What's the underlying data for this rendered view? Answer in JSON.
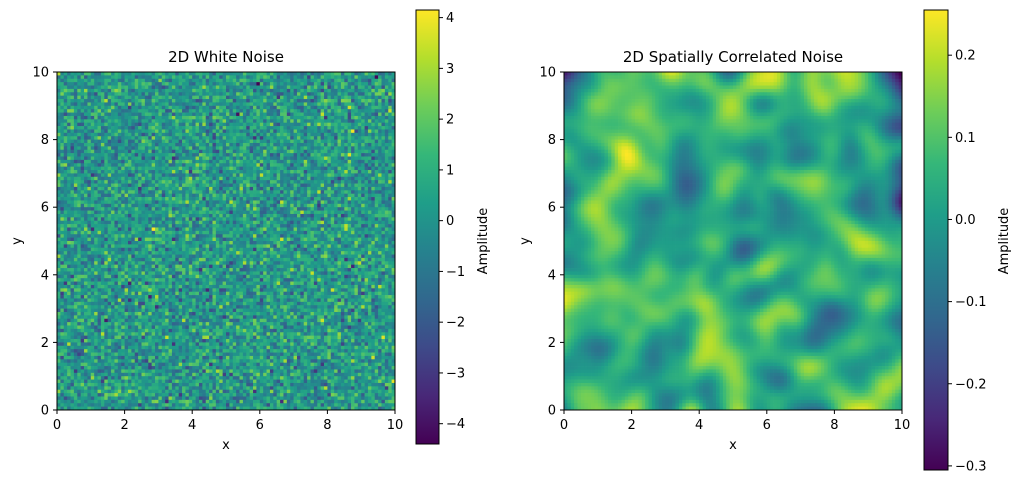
{
  "chart_data": [
    {
      "type": "heatmap",
      "title": "2D White Noise",
      "xlabel": "x",
      "ylabel": "y",
      "xlim": [
        0,
        10
      ],
      "ylim": [
        0,
        10
      ],
      "xticks": [
        "0",
        "2",
        "4",
        "6",
        "8",
        "10"
      ],
      "yticks": [
        "0",
        "2",
        "4",
        "6",
        "8",
        "10"
      ],
      "grid_resolution": [
        100,
        100
      ],
      "colormap": "viridis",
      "colorbar": {
        "label": "Amplitude",
        "range": [
          -4.4,
          4.15
        ],
        "ticks": [
          -4,
          -3,
          -2,
          -1,
          0,
          1,
          2,
          3,
          4
        ],
        "tick_labels": [
          "−4",
          "−3",
          "−2",
          "−1",
          "0",
          "1",
          "2",
          "3",
          "4"
        ]
      },
      "field": {
        "kind": "white-noise",
        "mean": 0,
        "std": 1
      }
    },
    {
      "type": "heatmap",
      "title": "2D Spatially Correlated Noise",
      "xlabel": "x",
      "ylabel": "y",
      "xlim": [
        0,
        10
      ],
      "ylim": [
        0,
        10
      ],
      "xticks": [
        "0",
        "2",
        "4",
        "6",
        "8",
        "10"
      ],
      "yticks": [
        "0",
        "2",
        "4",
        "6",
        "8",
        "10"
      ],
      "grid_resolution": [
        100,
        100
      ],
      "colormap": "viridis",
      "colorbar": {
        "label": "Amplitude",
        "range": [
          -0.305,
          0.255
        ],
        "ticks": [
          -0.3,
          -0.2,
          -0.1,
          0.0,
          0.1,
          0.2
        ],
        "tick_labels": [
          "−0.3",
          "−0.2",
          "−0.1",
          "0.0",
          "0.1",
          "0.2"
        ]
      },
      "field": {
        "kind": "smoothed-noise",
        "correlation_length": 0.5
      }
    }
  ]
}
